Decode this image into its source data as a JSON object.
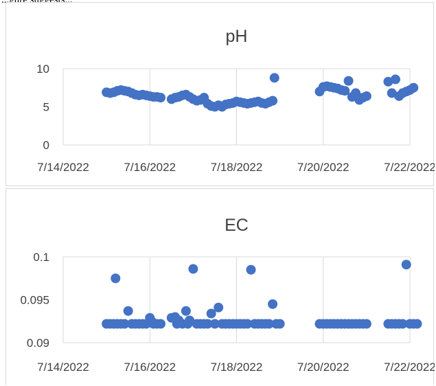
{
  "caption": "...gure suggests...",
  "colors": {
    "marker": "#4472c4",
    "grid": "#d9d9d9",
    "text": "#404040"
  },
  "chart_data": [
    {
      "type": "scatter",
      "title": "pH",
      "xlabel": "",
      "ylabel": "",
      "x_range": [
        "7/14/2022",
        "7/22/2022"
      ],
      "x_tick_labels": [
        "7/14/2022",
        "7/16/2022",
        "7/18/2022",
        "7/20/2022",
        "7/22/2022"
      ],
      "ylim": [
        0,
        10
      ],
      "y_tick_labels": [
        "0",
        "5",
        "10"
      ],
      "grid": "vertical",
      "series": [
        {
          "points": [
            [
              "7/15/2022 00:00",
              6.9
            ],
            [
              "7/15/2022 02:00",
              6.8
            ],
            [
              "7/15/2022 04:00",
              6.9
            ],
            [
              "7/15/2022 06:00",
              7.1
            ],
            [
              "7/15/2022 08:00",
              7.2
            ],
            [
              "7/15/2022 10:00",
              7.1
            ],
            [
              "7/15/2022 12:00",
              7.0
            ],
            [
              "7/15/2022 14:00",
              6.8
            ],
            [
              "7/15/2022 16:00",
              6.6
            ],
            [
              "7/15/2022 18:00",
              6.5
            ],
            [
              "7/15/2022 20:00",
              6.6
            ],
            [
              "7/15/2022 22:00",
              6.5
            ],
            [
              "7/16/2022 00:00",
              6.4
            ],
            [
              "7/16/2022 02:00",
              6.3
            ],
            [
              "7/16/2022 04:00",
              6.3
            ],
            [
              "7/16/2022 06:00",
              6.2
            ],
            [
              "7/16/2022 12:00",
              6.0
            ],
            [
              "7/16/2022 14:00",
              6.2
            ],
            [
              "7/16/2022 16:00",
              6.3
            ],
            [
              "7/16/2022 18:00",
              6.5
            ],
            [
              "7/16/2022 20:00",
              6.6
            ],
            [
              "7/16/2022 22:00",
              6.3
            ],
            [
              "7/17/2022 00:00",
              6.0
            ],
            [
              "7/17/2022 02:00",
              5.8
            ],
            [
              "7/17/2022 04:00",
              5.9
            ],
            [
              "7/17/2022 06:00",
              6.2
            ],
            [
              "7/17/2022 08:00",
              5.4
            ],
            [
              "7/17/2022 10:00",
              5.1
            ],
            [
              "7/17/2022 12:00",
              5.0
            ],
            [
              "7/17/2022 14:00",
              5.2
            ],
            [
              "7/17/2022 16:00",
              5.0
            ],
            [
              "7/17/2022 18:00",
              5.3
            ],
            [
              "7/17/2022 20:00",
              5.4
            ],
            [
              "7/17/2022 22:00",
              5.5
            ],
            [
              "7/18/2022 00:00",
              5.7
            ],
            [
              "7/18/2022 02:00",
              5.6
            ],
            [
              "7/18/2022 04:00",
              5.5
            ],
            [
              "7/18/2022 06:00",
              5.4
            ],
            [
              "7/18/2022 08:00",
              5.5
            ],
            [
              "7/18/2022 10:00",
              5.6
            ],
            [
              "7/18/2022 12:00",
              5.7
            ],
            [
              "7/18/2022 14:00",
              5.5
            ],
            [
              "7/18/2022 16:00",
              5.4
            ],
            [
              "7/18/2022 18:00",
              5.6
            ],
            [
              "7/18/2022 20:00",
              5.8
            ],
            [
              "7/18/2022 21:00",
              8.8
            ],
            [
              "7/19/2022 22:00",
              7.0
            ],
            [
              "7/20/2022 00:00",
              7.6
            ],
            [
              "7/20/2022 02:00",
              7.7
            ],
            [
              "7/20/2022 04:00",
              7.6
            ],
            [
              "7/20/2022 06:00",
              7.5
            ],
            [
              "7/20/2022 08:00",
              7.4
            ],
            [
              "7/20/2022 10:00",
              7.2
            ],
            [
              "7/20/2022 12:00",
              7.1
            ],
            [
              "7/20/2022 14:00",
              8.4
            ],
            [
              "7/20/2022 16:00",
              6.3
            ],
            [
              "7/20/2022 18:00",
              6.8
            ],
            [
              "7/20/2022 20:00",
              5.9
            ],
            [
              "7/20/2022 22:00",
              6.2
            ],
            [
              "7/21/2022 00:00",
              6.4
            ],
            [
              "7/21/2022 12:00",
              8.3
            ],
            [
              "7/21/2022 14:00",
              6.8
            ],
            [
              "7/21/2022 16:00",
              8.6
            ],
            [
              "7/21/2022 18:00",
              6.4
            ],
            [
              "7/21/2022 20:00",
              6.8
            ],
            [
              "7/21/2022 22:00",
              7.0
            ],
            [
              "7/22/2022 00:00",
              7.2
            ],
            [
              "7/22/2022 02:00",
              7.5
            ]
          ]
        }
      ]
    },
    {
      "type": "scatter",
      "title": "EC",
      "xlabel": "",
      "ylabel": "",
      "x_range": [
        "7/14/2022",
        "7/22/2022"
      ],
      "x_tick_labels": [
        "7/14/2022",
        "7/16/2022",
        "7/18/2022",
        "7/20/2022",
        "7/22/2022"
      ],
      "ylim": [
        0.09,
        0.1
      ],
      "y_tick_labels": [
        "0.09",
        "0.095",
        "0.1"
      ],
      "grid": "vertical",
      "series": [
        {
          "points": [
            [
              "7/15/2022 00:00",
              0.0922
            ],
            [
              "7/15/2022 02:00",
              0.0922
            ],
            [
              "7/15/2022 04:00",
              0.0922
            ],
            [
              "7/15/2022 05:00",
              0.0975
            ],
            [
              "7/15/2022 06:00",
              0.0922
            ],
            [
              "7/15/2022 08:00",
              0.0922
            ],
            [
              "7/15/2022 10:00",
              0.0922
            ],
            [
              "7/15/2022 12:00",
              0.0937
            ],
            [
              "7/15/2022 14:00",
              0.0922
            ],
            [
              "7/15/2022 16:00",
              0.0922
            ],
            [
              "7/15/2022 18:00",
              0.0922
            ],
            [
              "7/15/2022 20:00",
              0.0922
            ],
            [
              "7/15/2022 22:00",
              0.0922
            ],
            [
              "7/16/2022 00:00",
              0.0929
            ],
            [
              "7/16/2022 01:00",
              0.0925
            ],
            [
              "7/16/2022 02:00",
              0.0922
            ],
            [
              "7/16/2022 04:00",
              0.0922
            ],
            [
              "7/16/2022 06:00",
              0.0922
            ],
            [
              "7/16/2022 12:00",
              0.0929
            ],
            [
              "7/16/2022 14:00",
              0.093
            ],
            [
              "7/16/2022 15:00",
              0.0922
            ],
            [
              "7/16/2022 16:00",
              0.0926
            ],
            [
              "7/16/2022 18:00",
              0.0922
            ],
            [
              "7/16/2022 20:00",
              0.0937
            ],
            [
              "7/16/2022 21:00",
              0.0922
            ],
            [
              "7/16/2022 22:00",
              0.0926
            ],
            [
              "7/17/2022 00:00",
              0.0986
            ],
            [
              "7/17/2022 02:00",
              0.0922
            ],
            [
              "7/17/2022 04:00",
              0.0922
            ],
            [
              "7/17/2022 06:00",
              0.0922
            ],
            [
              "7/17/2022 08:00",
              0.0922
            ],
            [
              "7/17/2022 10:00",
              0.0934
            ],
            [
              "7/17/2022 12:00",
              0.0922
            ],
            [
              "7/17/2022 14:00",
              0.0941
            ],
            [
              "7/17/2022 16:00",
              0.0922
            ],
            [
              "7/17/2022 18:00",
              0.0922
            ],
            [
              "7/17/2022 20:00",
              0.0922
            ],
            [
              "7/17/2022 22:00",
              0.0922
            ],
            [
              "7/18/2022 00:00",
              0.0922
            ],
            [
              "7/18/2022 02:00",
              0.0922
            ],
            [
              "7/18/2022 04:00",
              0.0922
            ],
            [
              "7/18/2022 06:00",
              0.0922
            ],
            [
              "7/18/2022 08:00",
              0.0985
            ],
            [
              "7/18/2022 10:00",
              0.0922
            ],
            [
              "7/18/2022 12:00",
              0.0922
            ],
            [
              "7/18/2022 14:00",
              0.0922
            ],
            [
              "7/18/2022 16:00",
              0.0922
            ],
            [
              "7/18/2022 18:00",
              0.0922
            ],
            [
              "7/18/2022 20:00",
              0.0945
            ],
            [
              "7/18/2022 22:00",
              0.0922
            ],
            [
              "7/19/2022 00:00",
              0.0922
            ],
            [
              "7/19/2022 22:00",
              0.0922
            ],
            [
              "7/20/2022 00:00",
              0.0922
            ],
            [
              "7/20/2022 02:00",
              0.0922
            ],
            [
              "7/20/2022 04:00",
              0.0922
            ],
            [
              "7/20/2022 06:00",
              0.0922
            ],
            [
              "7/20/2022 08:00",
              0.0922
            ],
            [
              "7/20/2022 10:00",
              0.0922
            ],
            [
              "7/20/2022 12:00",
              0.0922
            ],
            [
              "7/20/2022 14:00",
              0.0922
            ],
            [
              "7/20/2022 16:00",
              0.0922
            ],
            [
              "7/20/2022 18:00",
              0.0922
            ],
            [
              "7/20/2022 20:00",
              0.0922
            ],
            [
              "7/20/2022 22:00",
              0.0922
            ],
            [
              "7/21/2022 00:00",
              0.0922
            ],
            [
              "7/21/2022 12:00",
              0.0922
            ],
            [
              "7/21/2022 14:00",
              0.0922
            ],
            [
              "7/21/2022 16:00",
              0.0922
            ],
            [
              "7/21/2022 18:00",
              0.0922
            ],
            [
              "7/21/2022 20:00",
              0.0922
            ],
            [
              "7/21/2022 22:00",
              0.0991
            ],
            [
              "7/22/2022 00:00",
              0.0922
            ],
            [
              "7/22/2022 02:00",
              0.0922
            ],
            [
              "7/22/2022 04:00",
              0.0922
            ]
          ]
        }
      ]
    }
  ]
}
